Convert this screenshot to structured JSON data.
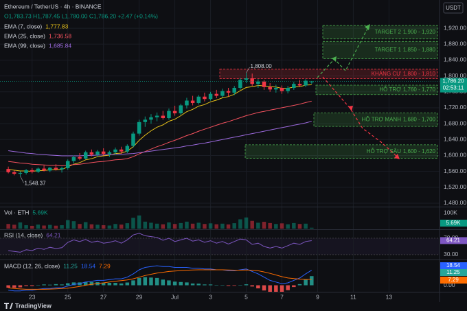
{
  "header": {
    "currency": "USDT"
  },
  "footer": {
    "logo": "TradingView"
  },
  "chart_data": [
    {
      "type": "candlestick",
      "title": "Ethereum / TetherUS · 4h · BINANCE",
      "ohlc_text": "O1,783.73 H1,787.45 L1,780.00 C1,786.20 +2.47 (+0.14%)",
      "x": [
        0,
        1,
        2,
        3,
        4,
        5,
        6,
        7,
        8,
        9,
        10,
        11,
        12,
        13,
        14,
        15,
        16,
        17,
        18,
        19,
        20,
        21,
        22,
        23,
        24,
        25,
        26,
        27,
        28,
        29,
        30,
        31,
        32,
        33,
        34,
        35,
        36,
        37,
        38,
        39,
        40,
        41,
        42,
        43,
        44,
        45,
        46,
        47,
        48,
        49,
        50,
        51
      ],
      "xlim": [
        -1.4,
        72.5
      ],
      "open": [
        1566,
        1558,
        1554,
        1556,
        1563,
        1559,
        1567,
        1562,
        1569,
        1565,
        1568,
        1586,
        1596,
        1592,
        1608,
        1602,
        1610,
        1604,
        1608,
        1615,
        1610,
        1624,
        1655,
        1684,
        1690,
        1696,
        1700,
        1694,
        1712,
        1706,
        1726,
        1738,
        1732,
        1748,
        1742,
        1755,
        1750,
        1762,
        1758,
        1770,
        1790,
        1794,
        1780,
        1786,
        1772,
        1766,
        1770,
        1762,
        1770,
        1780,
        1776,
        1783.73
      ],
      "high": [
        1572,
        1562,
        1560,
        1566,
        1568,
        1570,
        1575,
        1571,
        1578,
        1572,
        1590,
        1600,
        1606,
        1612,
        1615,
        1614,
        1618,
        1612,
        1620,
        1622,
        1628,
        1660,
        1690,
        1698,
        1704,
        1708,
        1712,
        1718,
        1725,
        1730,
        1745,
        1750,
        1752,
        1758,
        1760,
        1765,
        1768,
        1770,
        1775,
        1795,
        1808,
        1806,
        1792,
        1790,
        1782,
        1778,
        1776,
        1775,
        1785,
        1790,
        1792,
        1787.45
      ],
      "low": [
        1555,
        1550,
        1548.37,
        1552,
        1555,
        1556,
        1560,
        1558,
        1562,
        1557,
        1564,
        1580,
        1588,
        1590,
        1598,
        1596,
        1600,
        1596,
        1602,
        1604,
        1606,
        1620,
        1650,
        1672,
        1680,
        1686,
        1690,
        1690,
        1700,
        1702,
        1718,
        1726,
        1728,
        1736,
        1738,
        1744,
        1746,
        1748,
        1752,
        1765,
        1782,
        1775,
        1770,
        1765,
        1760,
        1758,
        1755,
        1756,
        1765,
        1772,
        1772,
        1780
      ],
      "close": [
        1558,
        1554,
        1556,
        1563,
        1559,
        1567,
        1562,
        1569,
        1565,
        1568,
        1586,
        1596,
        1592,
        1608,
        1602,
        1610,
        1604,
        1608,
        1615,
        1610,
        1624,
        1655,
        1684,
        1690,
        1696,
        1700,
        1694,
        1712,
        1706,
        1726,
        1738,
        1732,
        1748,
        1742,
        1755,
        1750,
        1762,
        1758,
        1770,
        1790,
        1794,
        1780,
        1786,
        1772,
        1766,
        1770,
        1762,
        1770,
        1780,
        1776,
        1788,
        1786.2
      ],
      "up_color": "#089981",
      "down_color": "#f23645",
      "series": [
        {
          "name": "EMA (7, close)",
          "color": "#e8c21a",
          "legend_value": "1,777.83",
          "values": [
            1565,
            1563,
            1561,
            1561,
            1560,
            1562,
            1562,
            1564,
            1564,
            1565,
            1571,
            1578,
            1582,
            1589,
            1592,
            1597,
            1599,
            1601,
            1605,
            1606,
            1611,
            1622,
            1638,
            1651,
            1662,
            1671,
            1677,
            1686,
            1691,
            1700,
            1710,
            1716,
            1724,
            1728,
            1735,
            1739,
            1745,
            1748,
            1754,
            1763,
            1771,
            1773,
            1776,
            1775,
            1773,
            1772,
            1769,
            1769,
            1772,
            1773,
            1777,
            1777.83
          ]
        },
        {
          "name": "EMA (25, close)",
          "color": "#f7525f",
          "legend_value": "1,736.58",
          "values": [
            1585,
            1583,
            1581,
            1580,
            1578,
            1577,
            1576,
            1575,
            1575,
            1574,
            1575,
            1577,
            1578,
            1580,
            1582,
            1584,
            1585,
            1587,
            1589,
            1590,
            1592,
            1597,
            1604,
            1610,
            1616,
            1622,
            1627,
            1633,
            1638,
            1644,
            1650,
            1655,
            1661,
            1666,
            1671,
            1676,
            1681,
            1685,
            1690,
            1695,
            1700,
            1704,
            1708,
            1711,
            1714,
            1717,
            1720,
            1723,
            1726,
            1729,
            1733,
            1736.58
          ]
        },
        {
          "name": "EMA (99, close)",
          "color": "#9c6ade",
          "legend_value": "1,685.84",
          "values": [
            1612,
            1610,
            1608,
            1606,
            1605,
            1603,
            1602,
            1601,
            1600,
            1599,
            1599,
            1599,
            1599,
            1600,
            1600,
            1601,
            1601,
            1602,
            1603,
            1603,
            1604,
            1605,
            1607,
            1609,
            1611,
            1613,
            1615,
            1617,
            1619,
            1621,
            1624,
            1626,
            1629,
            1631,
            1634,
            1637,
            1640,
            1643,
            1646,
            1649,
            1652,
            1655,
            1658,
            1661,
            1664,
            1667,
            1670,
            1673,
            1676,
            1679,
            1682,
            1685.84
          ]
        }
      ],
      "ylim": [
        1473,
        1991
      ],
      "yticks": [
        {
          "value": 1920,
          "label": "1,920.00"
        },
        {
          "value": 1880,
          "label": "1,880.00"
        },
        {
          "value": 1840,
          "label": "1,840.00"
        },
        {
          "value": 1800,
          "label": "1,800.00"
        },
        {
          "value": 1760,
          "label": "1,760.00"
        },
        {
          "value": 1720,
          "label": "1,720.00"
        },
        {
          "value": 1680,
          "label": "1,680.00"
        },
        {
          "value": 1640,
          "label": "1,640.00"
        },
        {
          "value": 1600,
          "label": "1,600.00"
        },
        {
          "value": 1560,
          "label": "1,560.00"
        },
        {
          "value": 1520,
          "label": "1,520.00"
        },
        {
          "value": 1480,
          "label": "1,480.00"
        }
      ],
      "zones": [
        {
          "label": "TARGET 2",
          "range": "1,900 - 1,920",
          "low": 1900,
          "high": 1920,
          "color": "#4caf50"
        },
        {
          "label": "TARGET 1",
          "range": "1,850 - 1,880",
          "low": 1850,
          "high": 1880,
          "color": "#4caf50"
        },
        {
          "label": "KHÁNG CỰ",
          "range": "1,800 - 1,810",
          "low": 1800,
          "high": 1810,
          "color": "#f23645"
        },
        {
          "label": "HỖ TRỢ",
          "range": "1,760 - 1,770",
          "low": 1760,
          "high": 1770,
          "color": "#4caf50"
        },
        {
          "label": "HỖ TRỢ MẠNH",
          "range": "1,680 - 1,700",
          "low": 1680,
          "high": 1700,
          "color": "#4caf50"
        },
        {
          "label": "HỖ TRỢ SÂU",
          "range": "1,600 - 1,620",
          "low": 1600,
          "high": 1620,
          "color": "#4caf50"
        }
      ],
      "annotations": [
        {
          "value": 1808,
          "label": "1,808.00",
          "x": 40
        },
        {
          "value": 1548.37,
          "label": "1,548.37",
          "x": 2
        }
      ],
      "last_price": {
        "value": 1786.2,
        "label": "1,786.20"
      },
      "countdown": "02:53:11"
    },
    {
      "type": "bar",
      "title": "Vol · ETH",
      "legend_value": "5.69K",
      "color": "#089981",
      "values": [
        30000,
        25000,
        40000,
        22000,
        18000,
        26000,
        20000,
        24000,
        19000,
        22000,
        55000,
        48000,
        30000,
        42000,
        28000,
        25000,
        22000,
        20000,
        30000,
        26000,
        35000,
        70000,
        85000,
        45000,
        38000,
        32000,
        28000,
        40000,
        30000,
        36000,
        45000,
        32000,
        38000,
        30000,
        34000,
        28000,
        32000,
        27000,
        35000,
        60000,
        72000,
        50000,
        38000,
        44000,
        36000,
        30000,
        34000,
        28000,
        36000,
        30000,
        32000,
        5690
      ],
      "ylim": [
        0,
        133000
      ],
      "yticks": [
        {
          "value": 100000,
          "label": "100K"
        }
      ]
    },
    {
      "type": "line",
      "title": "RSI (14, close)",
      "legend_value": "64.21",
      "color": "#7e57c2",
      "values": [
        40,
        38,
        36,
        42,
        40,
        46,
        43,
        48,
        45,
        47,
        60,
        66,
        62,
        67,
        60,
        63,
        58,
        60,
        64,
        58,
        66,
        78,
        82,
        76,
        74,
        72,
        65,
        70,
        62,
        66,
        70,
        63,
        66,
        60,
        64,
        58,
        62,
        56,
        62,
        68,
        66,
        55,
        58,
        50,
        46,
        50,
        46,
        52,
        58,
        55,
        62,
        64.21
      ],
      "ylim": [
        18.3,
        88.3
      ],
      "yticks": [
        {
          "value": 70,
          "label": "70.00"
        },
        {
          "value": 30,
          "label": "30.00"
        }
      ]
    },
    {
      "type": "macd",
      "title": "MACD (12, 26, close)",
      "series": [
        {
          "name": "Histogram",
          "color": "#26a69a",
          "negative_color": "#ff5252",
          "legend_value": "11.25",
          "values": [
            -3,
            -3,
            -2.5,
            -1,
            -1,
            0,
            1,
            0.7,
            1.4,
            1,
            2.5,
            3.5,
            3.5,
            4,
            4,
            3.8,
            3,
            3,
            3,
            2.2,
            3.4,
            6,
            9,
            10,
            9.5,
            9,
            7,
            6,
            4.5,
            4,
            3.5,
            2.2,
            2,
            1,
            1,
            0,
            0,
            -0.8,
            -0.6,
            0.4,
            1.2,
            -1.5,
            -3.8,
            -6.4,
            -8.6,
            -8.7,
            -8.6,
            -6,
            -2.2,
            1.4,
            6.9,
            11.25
          ]
        },
        {
          "name": "MACD",
          "color": "#2962ff",
          "legend_value": "18.54",
          "values": [
            -6,
            -7,
            -7,
            -6,
            -6,
            -5,
            -4,
            -4,
            -3,
            -3,
            -1,
            1,
            2,
            4,
            5,
            6,
            6,
            7,
            8,
            8,
            10,
            14,
            19,
            22,
            23,
            24,
            23,
            23,
            22,
            22,
            22,
            21,
            21,
            20,
            20,
            19,
            19,
            18,
            18,
            19,
            20,
            17,
            14,
            10,
            6,
            4,
            2,
            3,
            6,
            9,
            14,
            18.54
          ]
        },
        {
          "name": "Signal",
          "color": "#ff6d00",
          "legend_value": "7.29",
          "values": [
            -3,
            -4,
            -4.5,
            -5,
            -5,
            -5,
            -5,
            -4.7,
            -4.4,
            -4,
            -3.5,
            -2.5,
            -1.5,
            0,
            1,
            2.2,
            3,
            4,
            5,
            5.8,
            6.6,
            8,
            10,
            12,
            13.5,
            15,
            16,
            17,
            17.5,
            18,
            18.5,
            18.8,
            19,
            19,
            19,
            19,
            19,
            18.8,
            18.6,
            18.6,
            18.8,
            18.5,
            17.8,
            16.4,
            14.6,
            12.7,
            10.6,
            9,
            8.2,
            7.6,
            7.1,
            7.29
          ]
        }
      ],
      "ylim": [
        -8,
        30
      ],
      "yticks": [
        {
          "value": 0,
          "label": "0.00"
        }
      ],
      "xticks": [
        {
          "value": 4,
          "label": "23"
        },
        {
          "value": 10,
          "label": "25"
        },
        {
          "value": 16,
          "label": "27"
        },
        {
          "value": 22,
          "label": "29"
        },
        {
          "value": 28,
          "label": "Jul"
        },
        {
          "value": 34,
          "label": "3"
        },
        {
          "value": 40,
          "label": "5"
        },
        {
          "value": 46,
          "label": "7"
        },
        {
          "value": 52,
          "label": "9"
        },
        {
          "value": 58,
          "label": "11"
        },
        {
          "value": 64,
          "label": "13"
        }
      ]
    }
  ]
}
